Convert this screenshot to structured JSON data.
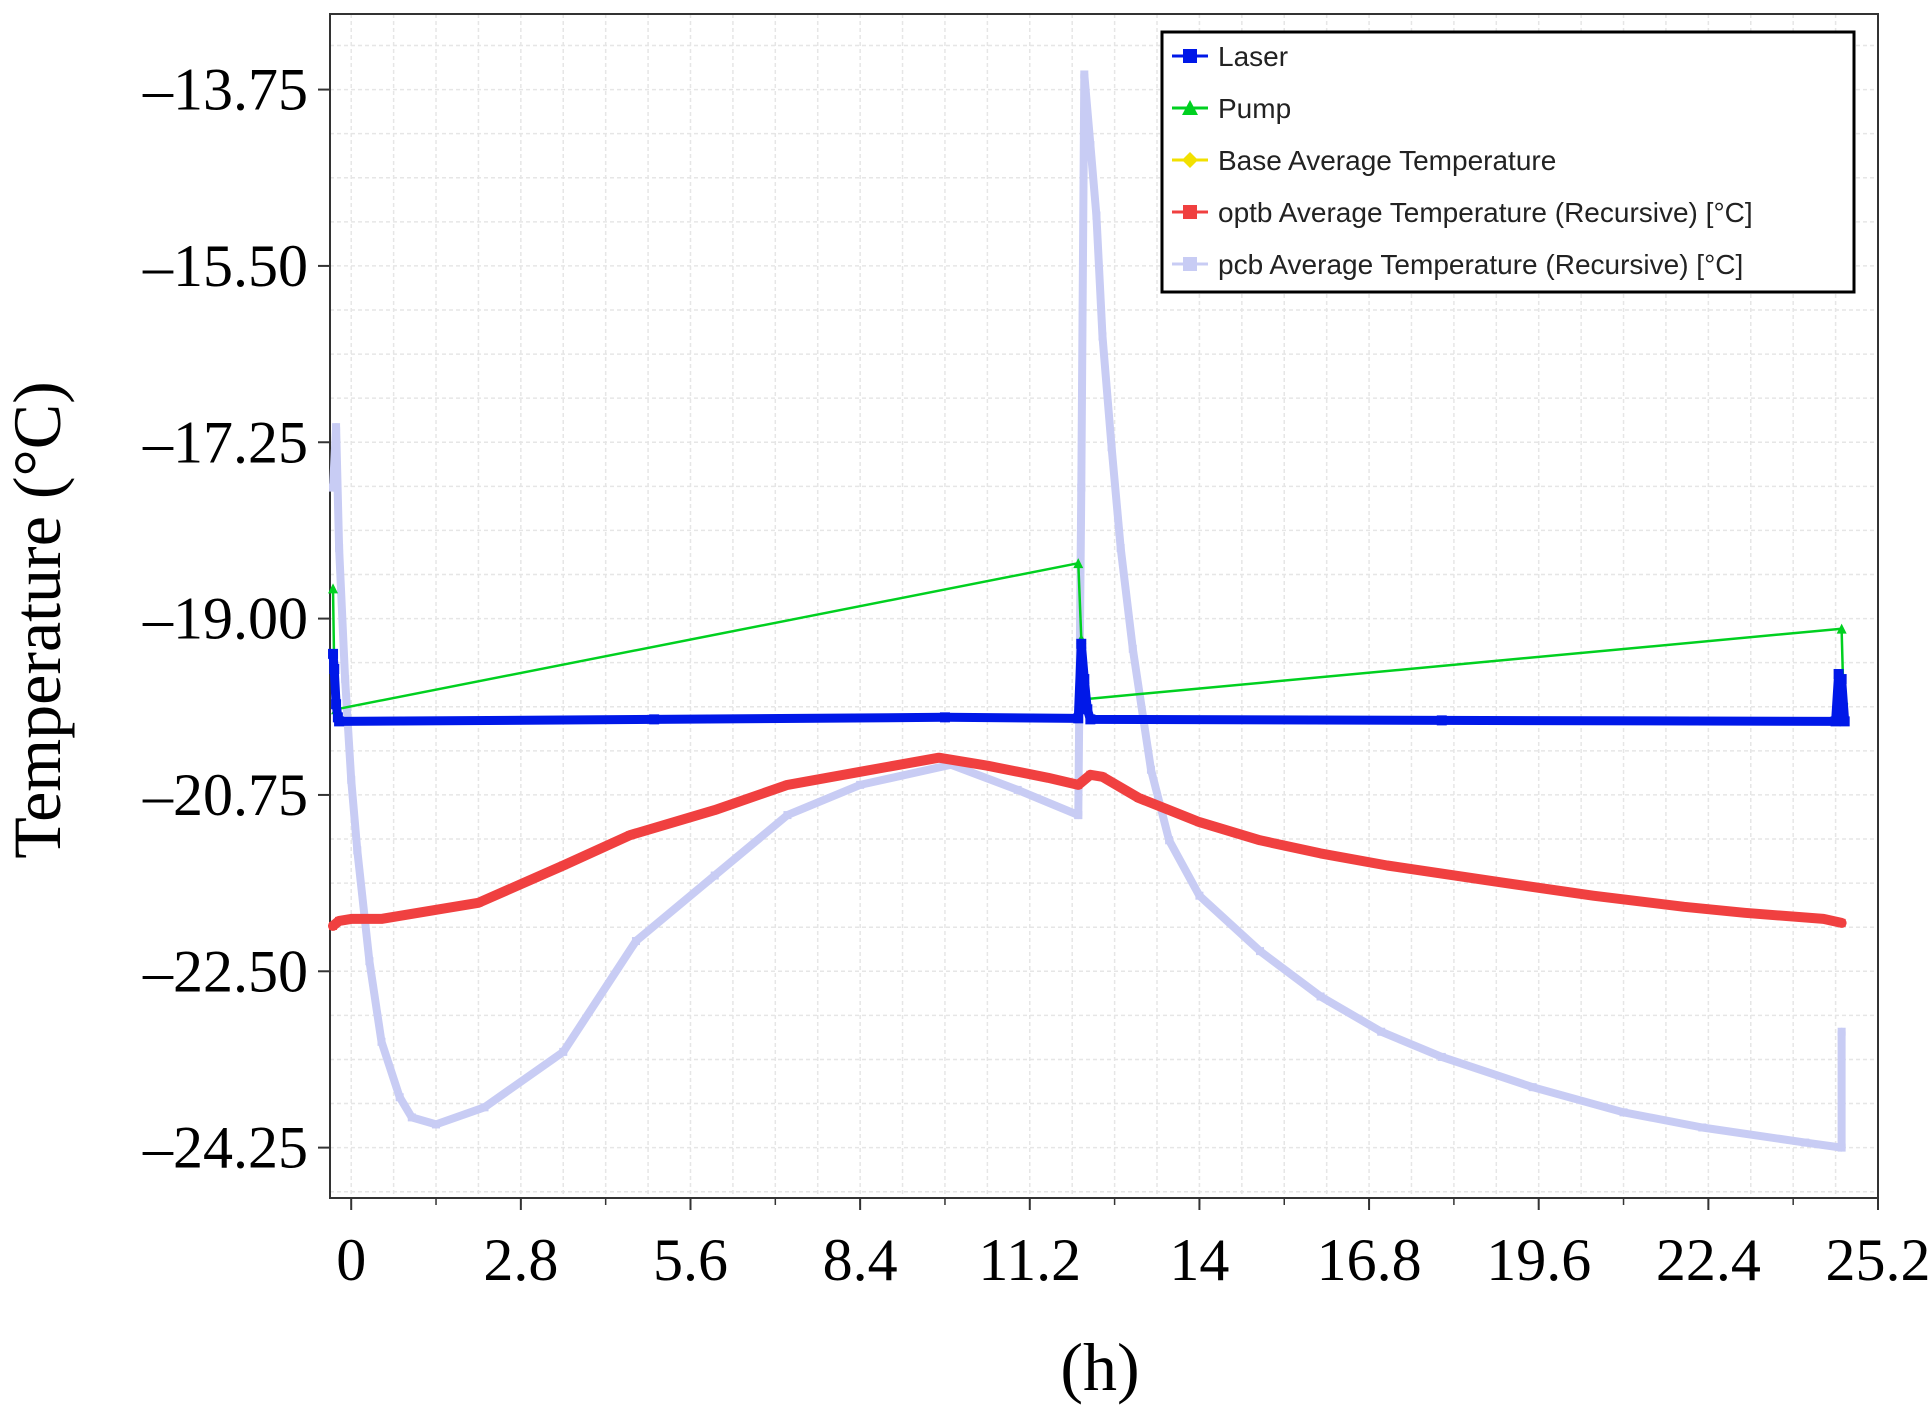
{
  "chart_data": {
    "type": "line",
    "title": "",
    "xlabel": "(h)",
    "ylabel": "Temperature (°C)",
    "xlim": [
      -0.35,
      25.2
    ],
    "ylim": [
      -24.75,
      -13.0
    ],
    "xticks": [
      0,
      2.8,
      5.6,
      8.4,
      11.2,
      14,
      16.8,
      19.6,
      22.4,
      25.2
    ],
    "xtick_labels": [
      "0",
      "2.8",
      "5.6",
      "8.4",
      "11.2",
      "14",
      "16.8",
      "19.6",
      "22.4",
      "25.2"
    ],
    "yticks": [
      -13.75,
      -15.5,
      -17.25,
      -19.0,
      -20.75,
      -22.5,
      -24.25
    ],
    "ytick_labels": [
      "–13.75",
      "–15.50",
      "–17.25",
      "–19.00",
      "–20.75",
      "–22.50",
      "–24.25"
    ],
    "grid": true,
    "legend_position": "top-right",
    "series": [
      {
        "name": "Laser",
        "color": "#0018e8",
        "marker": "square",
        "x": [
          -0.3,
          -0.28,
          -0.25,
          -0.22,
          -0.2,
          5.0,
          9.8,
          12.0,
          12.05,
          12.1,
          12.15,
          12.2,
          18.0,
          24.5,
          24.55,
          24.6,
          24.65
        ],
        "y": [
          -19.35,
          -19.5,
          -19.85,
          -19.98,
          -20.02,
          -20.0,
          -19.98,
          -19.99,
          -19.25,
          -19.6,
          -19.9,
          -20.0,
          -20.01,
          -20.02,
          -19.55,
          -19.6,
          -20.02
        ]
      },
      {
        "name": "Pump",
        "color": "#00d020",
        "marker": "triangle",
        "x": [
          -0.3,
          -0.28,
          -0.25,
          12.0,
          12.05,
          12.1,
          24.6,
          24.63
        ],
        "y": [
          -18.7,
          -19.5,
          -19.9,
          -18.45,
          -19.2,
          -19.8,
          -19.1,
          -19.8
        ]
      },
      {
        "name": "Base Average Temperature",
        "color": "#f2e000",
        "marker": "diamond",
        "x": [],
        "y": []
      },
      {
        "name": "optb Average Temperature (Recursive) [°C]",
        "color": "#f04040",
        "marker": "square",
        "x": [
          -0.3,
          -0.2,
          0.0,
          0.5,
          1.5,
          2.1,
          3.5,
          4.6,
          6.0,
          7.2,
          8.4,
          9.7,
          10.5,
          11.5,
          12.0,
          12.2,
          12.4,
          13.0,
          14.0,
          15.0,
          16.0,
          17.1,
          19.0,
          20.5,
          22.0,
          23.0,
          24.3,
          24.6
        ],
        "y": [
          -22.05,
          -22.0,
          -21.98,
          -21.98,
          -21.88,
          -21.82,
          -21.45,
          -21.15,
          -20.9,
          -20.65,
          -20.52,
          -20.38,
          -20.46,
          -20.58,
          -20.65,
          -20.55,
          -20.57,
          -20.78,
          -21.02,
          -21.2,
          -21.33,
          -21.45,
          -21.62,
          -21.75,
          -21.86,
          -21.92,
          -21.98,
          -22.02
        ]
      },
      {
        "name": "pcb Average Temperature (Recursive) [°C]",
        "color": "#c8ccf4",
        "marker": "square",
        "x": [
          -0.3,
          -0.25,
          -0.2,
          -0.1,
          0.0,
          0.1,
          0.3,
          0.5,
          0.8,
          1.0,
          1.4,
          2.2,
          3.5,
          4.7,
          6.0,
          7.2,
          8.4,
          9.9,
          11.0,
          12.0,
          12.0,
          12.05,
          12.1,
          12.2,
          12.3,
          12.4,
          12.55,
          12.7,
          12.9,
          13.2,
          13.5,
          14.0,
          15.0,
          16.0,
          17.0,
          18.0,
          19.5,
          21.0,
          22.3,
          24.0,
          24.6,
          24.6
        ],
        "y": [
          -17.7,
          -17.1,
          -18.3,
          -19.6,
          -20.6,
          -21.3,
          -22.4,
          -23.2,
          -23.75,
          -23.95,
          -24.02,
          -23.85,
          -23.3,
          -22.2,
          -21.55,
          -20.95,
          -20.65,
          -20.45,
          -20.7,
          -20.95,
          -20.95,
          -17.7,
          -13.6,
          -14.3,
          -15.0,
          -16.2,
          -17.3,
          -18.3,
          -19.3,
          -20.5,
          -21.2,
          -21.75,
          -22.3,
          -22.75,
          -23.1,
          -23.35,
          -23.65,
          -23.9,
          -24.05,
          -24.2,
          -24.25,
          -23.1
        ]
      }
    ]
  }
}
